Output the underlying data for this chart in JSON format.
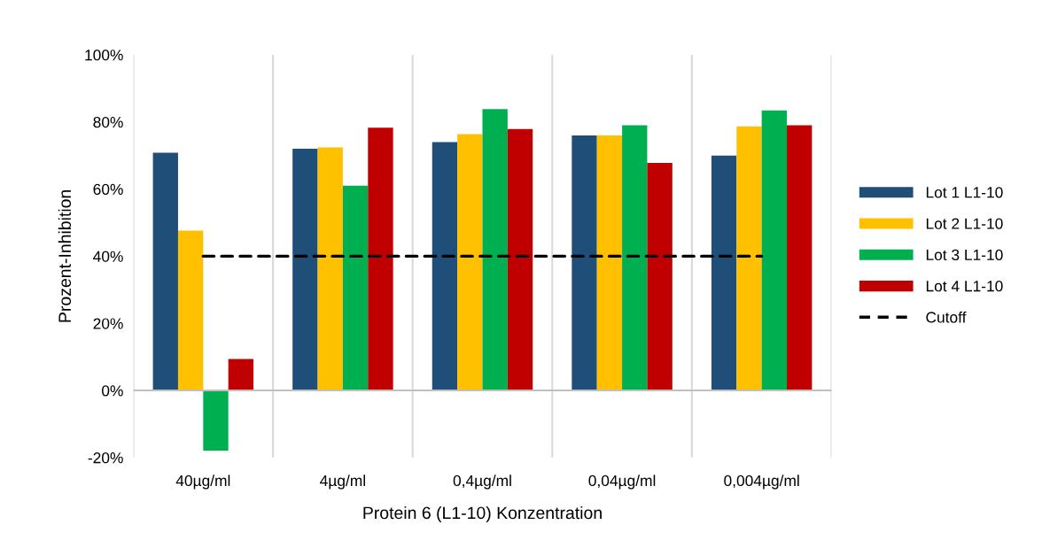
{
  "chart_data": {
    "type": "bar",
    "xlabel": "Protein 6 (L1-10) Konzentration",
    "ylabel": "Prozent-Inhibition",
    "categories": [
      "40µg/ml",
      "4µg/ml",
      "0,4µg/ml",
      "0,04µg/ml",
      "0,004µg/ml"
    ],
    "series": [
      {
        "name": "Lot 1 L1-10",
        "color": "#1f4e79",
        "values": [
          70.8,
          72.0,
          74.0,
          76.0,
          70.0
        ]
      },
      {
        "name": "Lot 2 L1-10",
        "color": "#ffc000",
        "values": [
          47.6,
          72.4,
          76.4,
          76.0,
          78.7
        ]
      },
      {
        "name": "Lot 3 L1-10",
        "color": "#00b050",
        "values": [
          -17.9,
          61.0,
          83.8,
          79.0,
          83.4
        ]
      },
      {
        "name": "Lot 4 L1-10",
        "color": "#c00000",
        "values": [
          9.4,
          78.3,
          77.9,
          67.8,
          79.0
        ]
      },
      {
        "name": "Cutoff",
        "type": "line",
        "color": "#000000",
        "line_style": "dashed",
        "marker": "none",
        "values": [
          40,
          40,
          40,
          40,
          40
        ]
      }
    ],
    "ylim": [
      -20,
      100
    ],
    "yticks": [
      {
        "value": -20,
        "label": "-20%"
      },
      {
        "value": 0,
        "label": "0%"
      },
      {
        "value": 20,
        "label": "20%"
      },
      {
        "value": 40,
        "label": "40%"
      },
      {
        "value": 60,
        "label": "60%"
      },
      {
        "value": 80,
        "label": "80%"
      },
      {
        "value": 100,
        "label": "100%"
      }
    ],
    "grid": "x",
    "legend": "right"
  }
}
